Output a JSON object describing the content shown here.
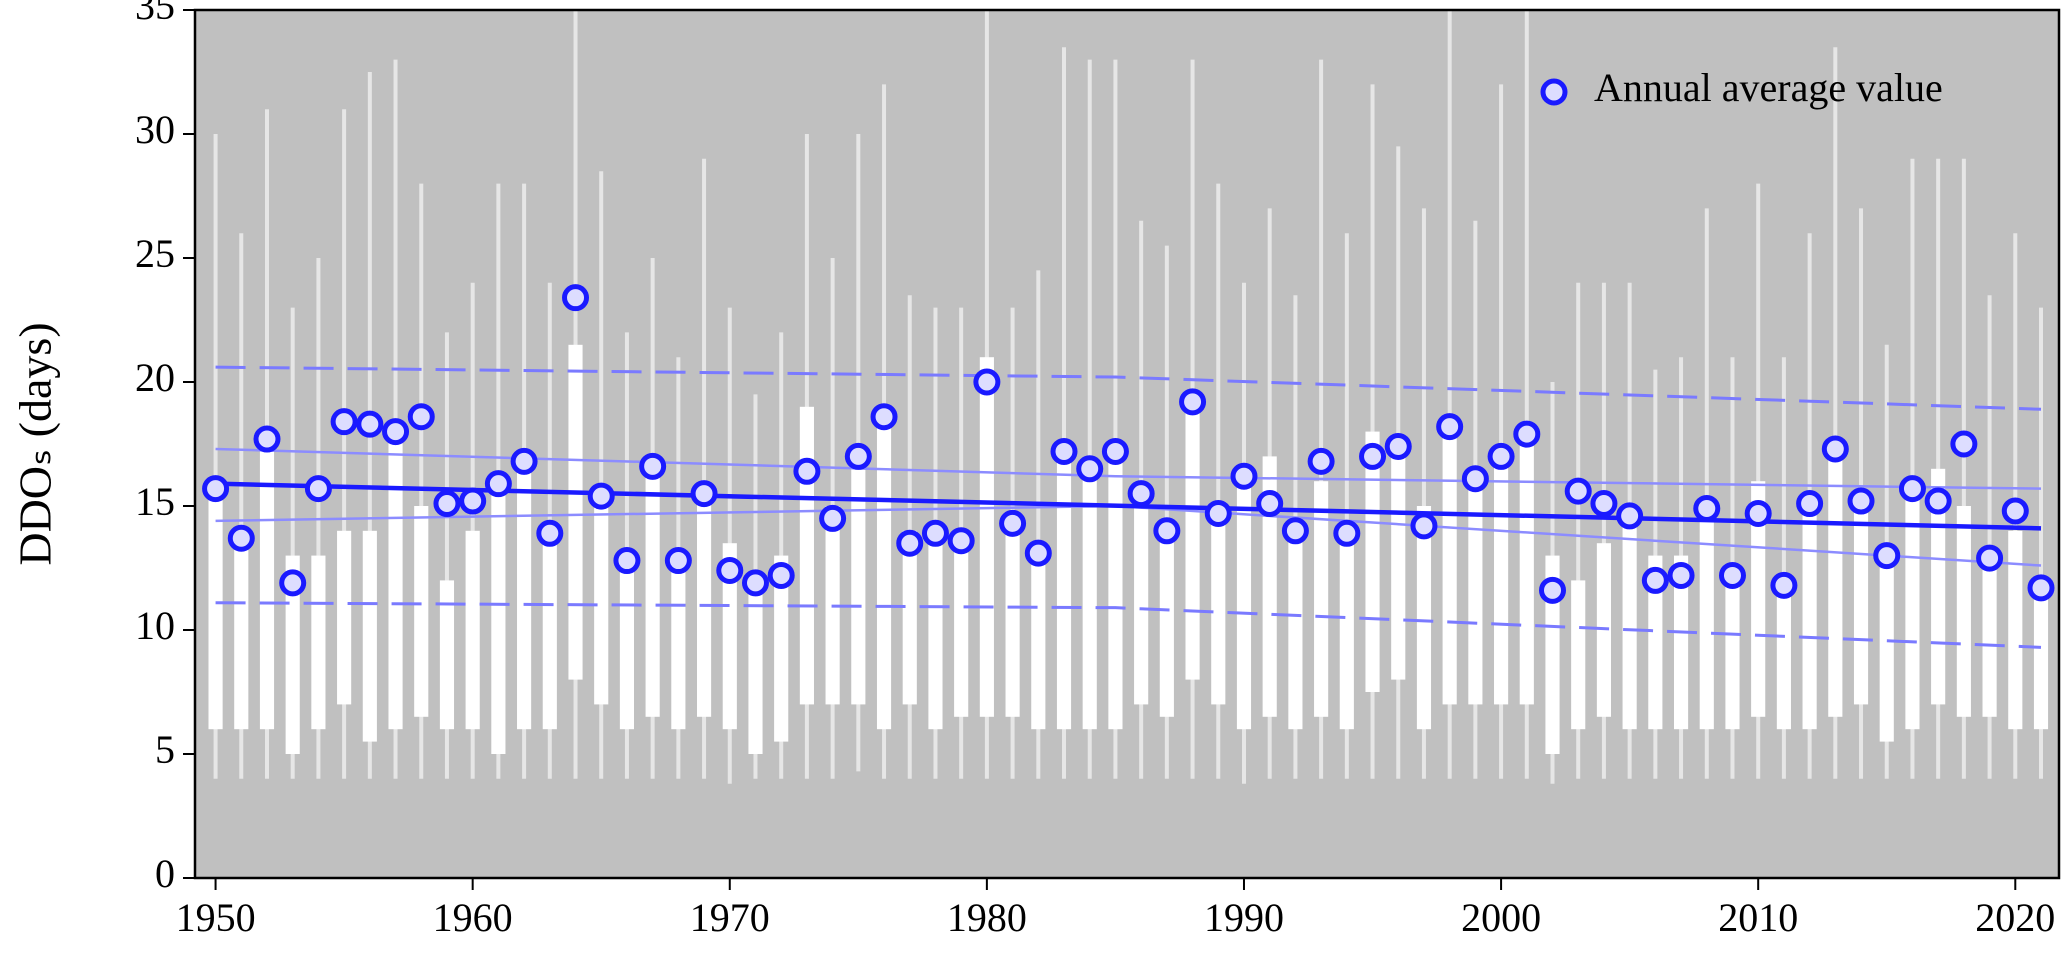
{
  "chart_data": {
    "type": "box",
    "ylabel": "DDOₛ (days)",
    "x": [
      1950,
      1951,
      1952,
      1953,
      1954,
      1955,
      1956,
      1957,
      1958,
      1959,
      1960,
      1961,
      1962,
      1963,
      1964,
      1965,
      1966,
      1967,
      1968,
      1969,
      1970,
      1971,
      1972,
      1973,
      1974,
      1975,
      1976,
      1977,
      1978,
      1979,
      1980,
      1981,
      1982,
      1983,
      1984,
      1985,
      1986,
      1987,
      1988,
      1989,
      1990,
      1991,
      1992,
      1993,
      1994,
      1995,
      1996,
      1997,
      1998,
      1999,
      2000,
      2001,
      2002,
      2003,
      2004,
      2005,
      2006,
      2007,
      2008,
      2009,
      2010,
      2011,
      2012,
      2013,
      2014,
      2015,
      2016,
      2017,
      2018,
      2019,
      2020,
      2021
    ],
    "boxes": {
      "color": "#ffffff",
      "whisker_color": "#e6e6e6",
      "whisker_low": [
        4,
        4,
        4,
        4,
        4,
        4,
        4,
        4,
        4,
        4,
        4,
        4,
        4,
        4,
        4,
        4,
        4,
        4,
        4,
        4,
        3.8,
        4,
        4,
        4,
        4,
        4.3,
        4,
        4,
        4,
        4,
        4,
        4,
        4,
        4,
        4,
        4,
        4,
        4,
        4,
        4,
        3.8,
        4,
        4,
        4,
        4,
        4,
        4,
        4,
        4,
        4,
        4,
        4,
        3.8,
        4,
        4,
        4,
        4,
        4,
        4,
        4,
        4,
        4,
        4,
        4,
        4,
        4,
        4,
        4,
        4,
        4,
        4,
        4
      ],
      "q1": [
        6,
        6,
        6,
        5,
        6,
        7,
        5.5,
        6,
        6.5,
        6,
        6,
        5,
        6,
        6,
        8,
        7,
        6,
        6.5,
        6,
        6.5,
        6,
        5,
        5.5,
        7,
        7,
        7,
        6,
        7,
        6,
        6.5,
        6.5,
        6.5,
        6,
        6,
        6,
        6,
        7,
        6.5,
        8,
        7,
        6,
        6.5,
        6,
        6.5,
        6,
        7.5,
        8,
        6,
        7,
        7,
        7,
        7,
        5,
        6,
        6.5,
        6,
        6,
        6,
        6,
        6,
        6.5,
        6,
        6,
        6.5,
        7,
        5.5,
        6,
        7,
        6.5,
        6.5,
        6,
        6
      ],
      "q3": [
        15.5,
        14,
        17.5,
        13,
        13,
        14,
        14,
        18,
        15,
        12,
        14,
        15.5,
        17,
        14,
        21.5,
        15.5,
        13,
        16.5,
        13,
        15.5,
        13.5,
        12,
        13,
        19,
        15,
        17,
        18.5,
        14,
        14,
        14,
        21,
        14.5,
        13,
        17,
        16.5,
        17,
        15.5,
        14,
        19,
        15,
        16.5,
        17,
        14,
        16,
        14,
        18,
        17.5,
        15,
        18,
        16,
        17,
        17.5,
        13,
        12,
        13.5,
        15,
        13,
        13,
        15,
        12.5,
        16,
        12,
        15,
        17,
        15.5,
        13,
        16,
        16.5,
        15,
        12.5,
        14,
        12
      ],
      "whisker_high": [
        30,
        26,
        31,
        23,
        25,
        31,
        32.5,
        33,
        28,
        22,
        24,
        28,
        28,
        24,
        35,
        28.5,
        22,
        25,
        21,
        29,
        23,
        19.5,
        22,
        30,
        25,
        30,
        32,
        23.5,
        23,
        23,
        35,
        23,
        24.5,
        33.5,
        33,
        33,
        26.5,
        25.5,
        33,
        28,
        24,
        27,
        23.5,
        33,
        26,
        32,
        29.5,
        27,
        35,
        26.5,
        32,
        35,
        20,
        24,
        24,
        24,
        20.5,
        21,
        27,
        21,
        28,
        21,
        26,
        33.5,
        27,
        21.5,
        29,
        29,
        29,
        23.5,
        26,
        23
      ]
    },
    "series": [
      {
        "name": "Annual average value",
        "color": "#1a1aff",
        "values": [
          15.7,
          13.7,
          17.7,
          11.9,
          15.7,
          18.4,
          18.3,
          18.0,
          18.6,
          15.1,
          15.2,
          15.9,
          16.8,
          13.9,
          23.4,
          15.4,
          12.8,
          16.6,
          12.8,
          15.5,
          12.4,
          11.9,
          12.2,
          16.4,
          14.5,
          17.0,
          18.6,
          13.5,
          13.9,
          13.6,
          20.0,
          14.3,
          13.1,
          17.2,
          16.5,
          17.2,
          15.5,
          14.0,
          19.2,
          14.7,
          16.2,
          15.1,
          14.0,
          16.8,
          13.9,
          17.0,
          17.4,
          14.2,
          18.2,
          16.1,
          17.0,
          17.9,
          11.6,
          15.6,
          15.1,
          14.6,
          12.0,
          12.2,
          14.9,
          12.2,
          14.7,
          11.8,
          15.1,
          17.3,
          15.2,
          13.0,
          15.7,
          15.2,
          17.5,
          12.9,
          14.8,
          11.7
        ]
      }
    ],
    "trend": {
      "color": "#1a1aff",
      "x": [
        1950,
        2021
      ],
      "values": [
        15.9,
        14.1
      ]
    },
    "confidence_upper": {
      "color": "#8c8cff",
      "x": [
        1950,
        1985,
        2021
      ],
      "values": [
        17.3,
        16.2,
        15.7
      ]
    },
    "confidence_lower": {
      "color": "#8c8cff",
      "x": [
        1950,
        1985,
        2021
      ],
      "values": [
        14.4,
        15.0,
        12.6
      ]
    },
    "prediction_upper": {
      "color": "#7a7aff",
      "x": [
        1950,
        1985,
        2021
      ],
      "values": [
        20.6,
        20.2,
        18.9
      ]
    },
    "prediction_lower": {
      "color": "#7a7aff",
      "x": [
        1950,
        1985,
        2021
      ],
      "values": [
        11.1,
        10.9,
        9.3
      ]
    },
    "xlim": [
      1949.2,
      2021.7
    ],
    "ylim": [
      0,
      35
    ],
    "xticks": [
      1950,
      1960,
      1970,
      1980,
      1990,
      2000,
      2010,
      2020
    ],
    "yticks": [
      0,
      5,
      10,
      15,
      20,
      25,
      30,
      35
    ],
    "legend": "upper right",
    "background": "#c0c0c0"
  }
}
